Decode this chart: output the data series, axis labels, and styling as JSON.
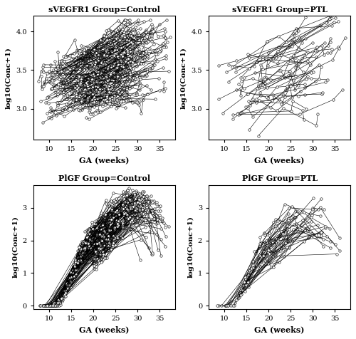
{
  "titles": [
    "sVEGFR1 Group=Control",
    "sVEGFR1 Group=PTL",
    "PlGF Group=Control",
    "PlGF Group=PTL"
  ],
  "ylabel": "log10(Conc+1)",
  "xlabel": "GA (weeks)",
  "n_control": 208,
  "n_ptl": 52,
  "svegfr_control_ylim": [
    2.6,
    4.2
  ],
  "svegfr_ptl_ylim": [
    2.6,
    4.2
  ],
  "pigf_control_ylim": [
    -0.1,
    3.7
  ],
  "pigf_ptl_ylim": [
    -0.1,
    3.7
  ],
  "xticks": [
    10,
    15,
    20,
    25,
    30,
    35
  ],
  "svegfr_yticks": [
    3.0,
    3.5,
    4.0
  ],
  "pigf_yticks": [
    0,
    1,
    2,
    3
  ],
  "line_color": "black",
  "marker_color": "white",
  "marker_edge_color": "black",
  "line_width": 0.4,
  "marker_size": 2.5,
  "marker_edge_width": 0.4,
  "background_color": "white",
  "fig_width": 5.0,
  "fig_height": 4.76,
  "dpi": 100
}
